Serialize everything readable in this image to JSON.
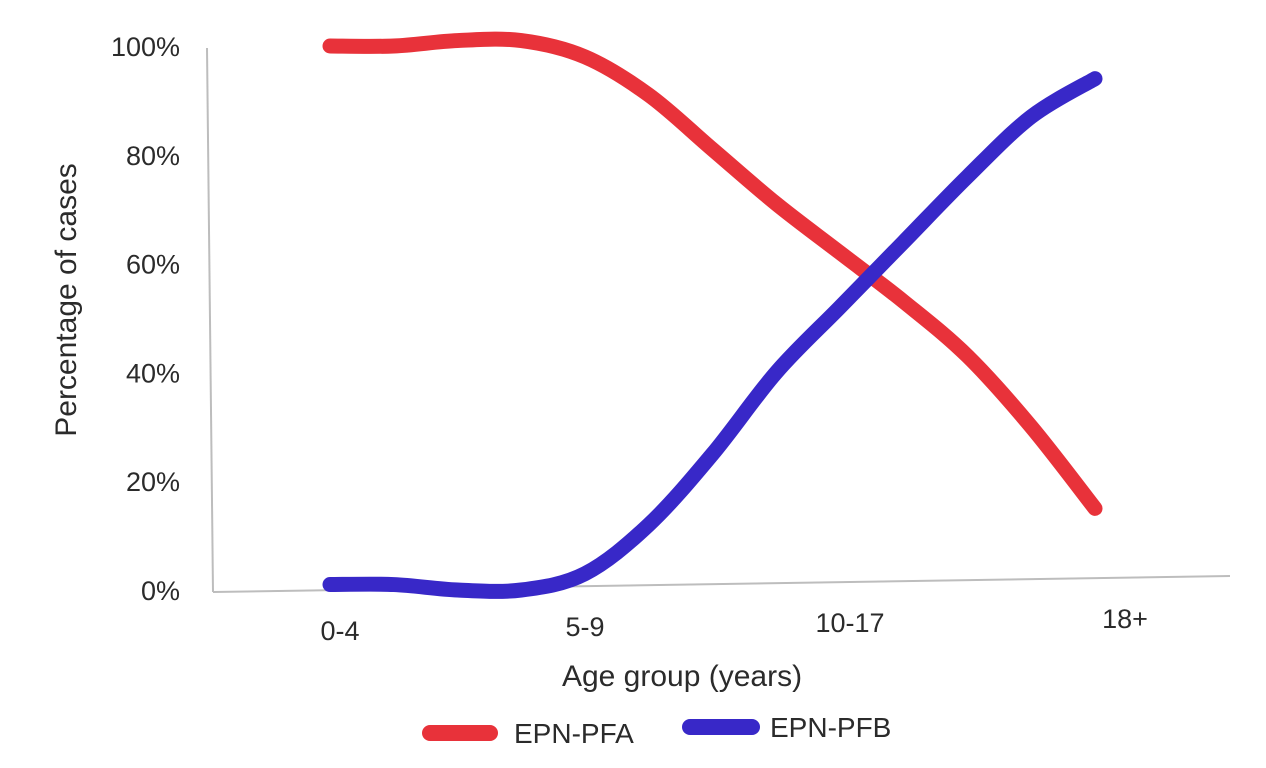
{
  "chart_data": {
    "type": "line",
    "title": "",
    "xlabel": "Age group (years)",
    "ylabel": "Percentage of cases",
    "categories": [
      "0-4",
      "5-9",
      "10-17",
      "18+"
    ],
    "ylim": [
      0,
      100
    ],
    "yticks": [
      "0%",
      "20%",
      "40%",
      "60%",
      "80%",
      "100%"
    ],
    "ytick_values": [
      0,
      20,
      40,
      60,
      80,
      100
    ],
    "grid": false,
    "legend_position": "bottom",
    "series": [
      {
        "name": "EPN-PFA",
        "color": "#e8323a",
        "x": [
          0,
          0.25,
          0.5,
          0.75,
          1,
          1.25,
          1.5,
          1.75,
          2,
          2.25,
          2.5,
          2.75,
          3
        ],
        "y": [
          100,
          100,
          101,
          101,
          98,
          91,
          81,
          71,
          62,
          53,
          43,
          30,
          15
        ]
      },
      {
        "name": "EPN-PFB",
        "color": "#3828c8",
        "x": [
          0,
          0.25,
          0.5,
          0.75,
          1,
          1.25,
          1.5,
          1.75,
          2,
          2.25,
          2.5,
          2.75,
          3
        ],
        "y": [
          1,
          1,
          0,
          0,
          3,
          12,
          25,
          40,
          52,
          64,
          76,
          87,
          94
        ]
      }
    ]
  }
}
